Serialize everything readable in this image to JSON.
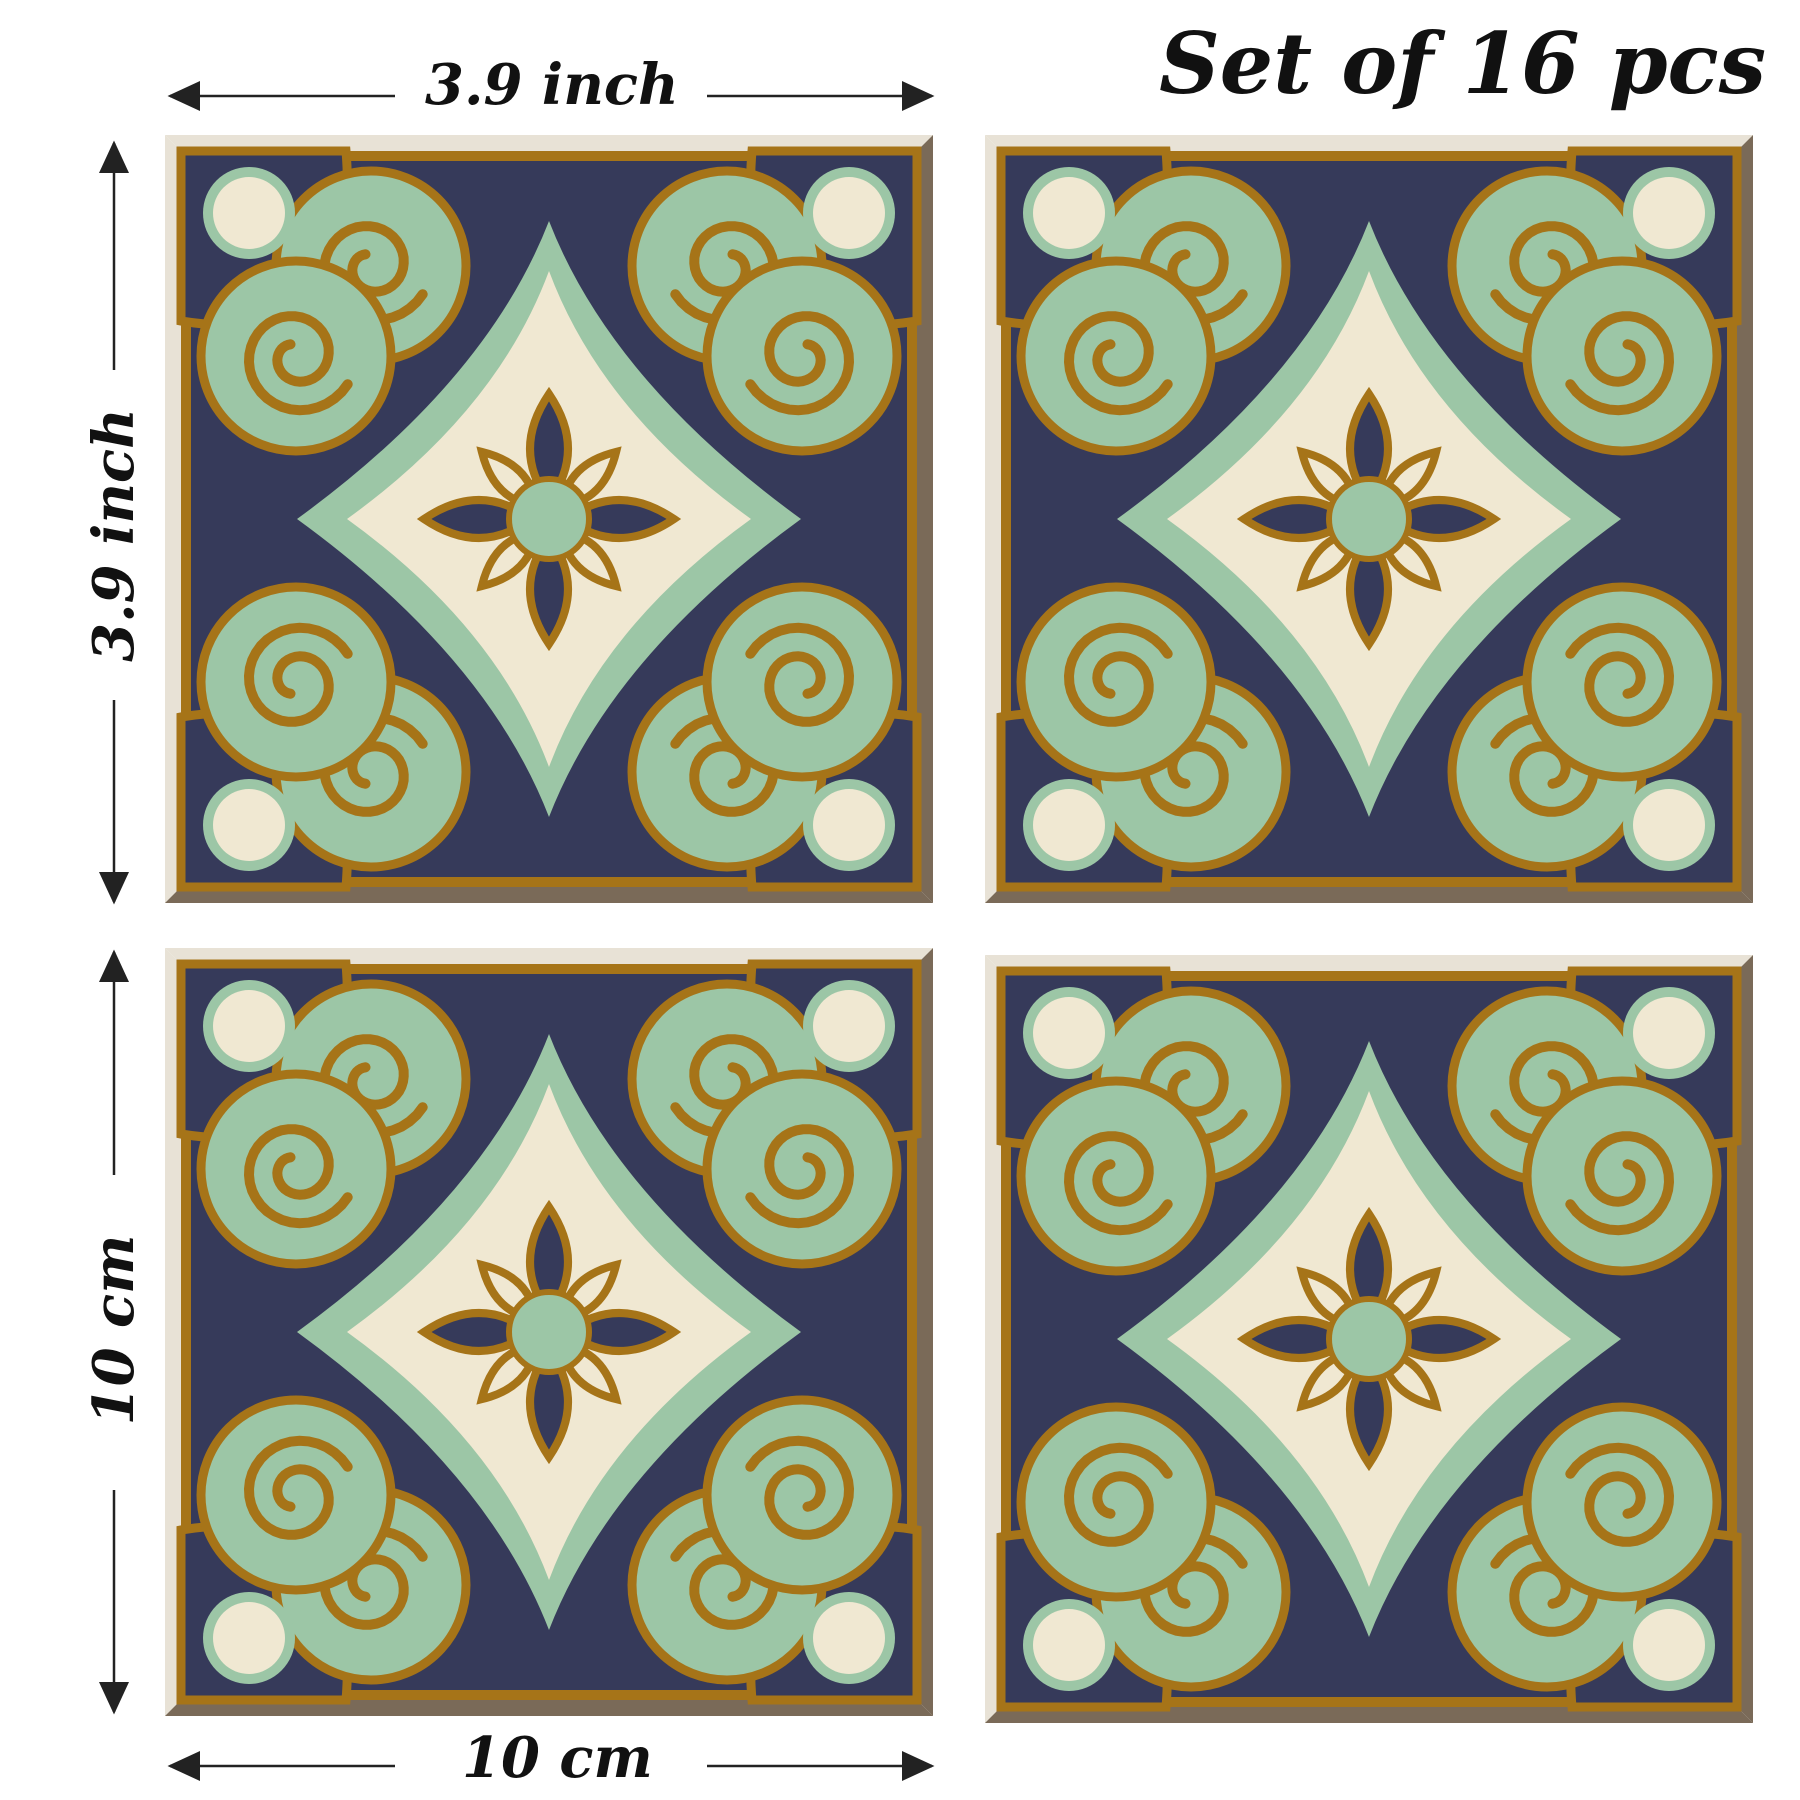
{
  "heading": "Set of 16 pcs",
  "dimensions": {
    "top_width": "3.9 inch",
    "left_height_top": "3.9 inch",
    "left_height_bottom": "10 cm",
    "bottom_width": "10 cm"
  },
  "colors": {
    "gold": "#a67418",
    "navy": "#363a5a",
    "mint": "#9cc6a6",
    "cream": "#f0e8d2",
    "bevel_light": "#e8e2d6",
    "bevel_dark": "#7a6a58",
    "arrow": "#222222"
  },
  "tile_count_shown": 4
}
